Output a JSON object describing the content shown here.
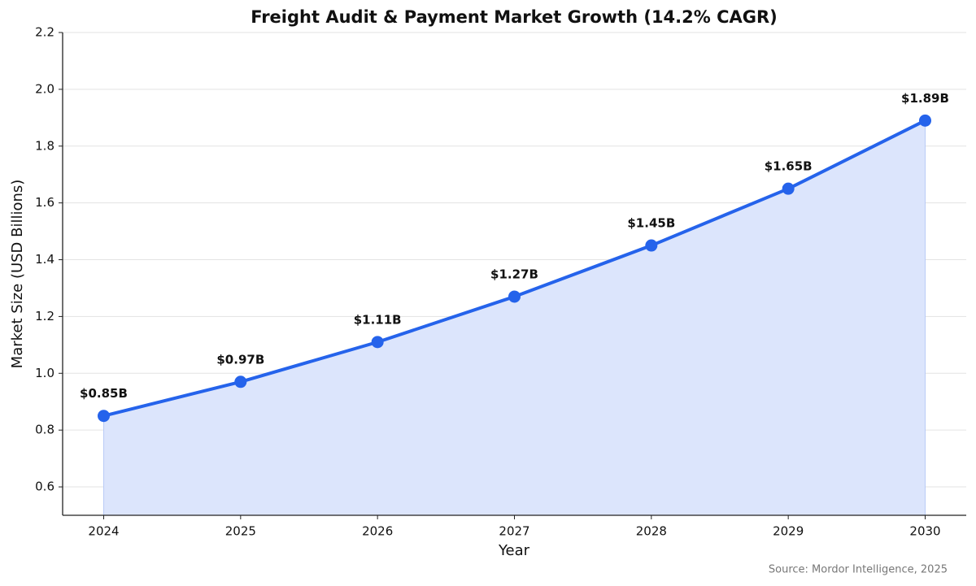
{
  "chart_data": {
    "type": "line",
    "title": "Freight Audit & Payment Market Growth (14.2% CAGR)",
    "x_label": "Year",
    "y_label": "Market Size (USD Billions)",
    "source": "Source: Mordor Intelligence, 2025",
    "x": [
      2024,
      2025,
      2026,
      2027,
      2028,
      2029,
      2030
    ],
    "series": [
      {
        "name": "Market Size",
        "color": "#2563eb",
        "fill": "#dce5fc",
        "values": [
          0.85,
          0.97,
          1.11,
          1.27,
          1.45,
          1.65,
          1.89
        ],
        "value_labels": [
          "$0.85B",
          "$0.97B",
          "$1.11B",
          "$1.27B",
          "$1.45B",
          "$1.65B",
          "$1.89B"
        ]
      }
    ],
    "xlim": [
      2023.7,
      2030.3
    ],
    "xticks": [
      2024,
      2025,
      2026,
      2027,
      2028,
      2029,
      2030
    ],
    "ylim": [
      0.5,
      2.2
    ],
    "yticks": [
      0.6,
      0.8,
      {
        "value": 1,
        "label": "1.0"
      },
      1.2,
      1.4,
      1.6,
      1.8,
      {
        "value": 2,
        "label": "2.0"
      },
      2.2
    ],
    "grid": true
  }
}
